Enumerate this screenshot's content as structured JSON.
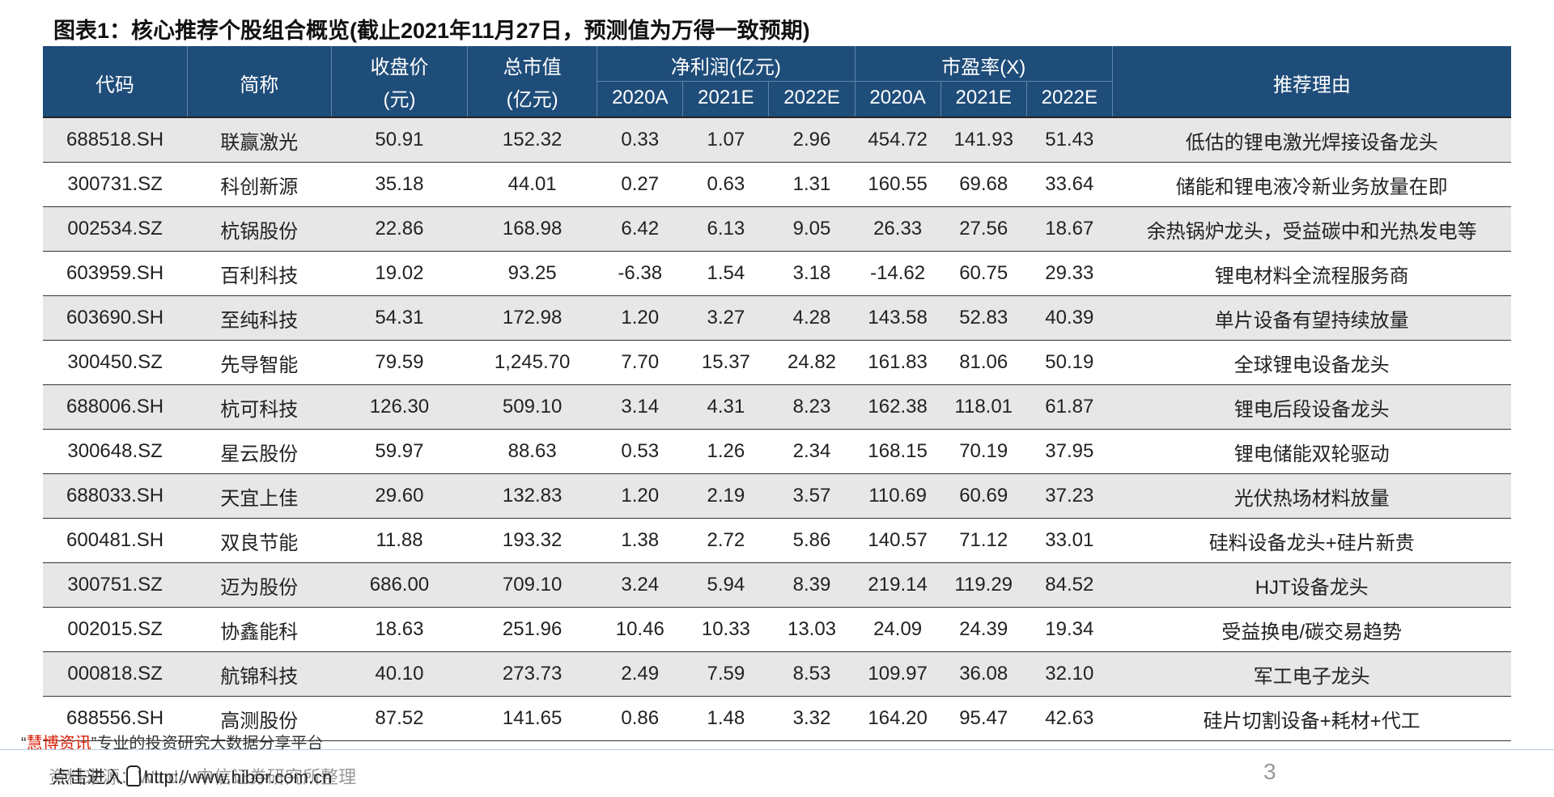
{
  "title": "图表1：核心推荐个股组合概览(截止2021年11月27日，预测值为万得一致预期)",
  "table": {
    "headers": {
      "code": "代码",
      "name": "简称",
      "close": "收盘价",
      "close_unit": "(元)",
      "mktcap": "总市值",
      "mktcap_unit": "(亿元)",
      "profit": "净利润(亿元)",
      "pe": "市盈率(X)",
      "reason": "推荐理由",
      "years": [
        "2020A",
        "2021E",
        "2022E"
      ]
    },
    "rows": [
      {
        "code": "688518.SH",
        "name": "联赢激光",
        "close": "50.91",
        "mktcap": "152.32",
        "p2020": "0.33",
        "p2021": "1.07",
        "p2022": "2.96",
        "pe2020": "454.72",
        "pe2021": "141.93",
        "pe2022": "51.43",
        "reason": "低估的锂电激光焊接设备龙头"
      },
      {
        "code": "300731.SZ",
        "name": "科创新源",
        "close": "35.18",
        "mktcap": "44.01",
        "p2020": "0.27",
        "p2021": "0.63",
        "p2022": "1.31",
        "pe2020": "160.55",
        "pe2021": "69.68",
        "pe2022": "33.64",
        "reason": "储能和锂电液冷新业务放量在即"
      },
      {
        "code": "002534.SZ",
        "name": "杭锅股份",
        "close": "22.86",
        "mktcap": "168.98",
        "p2020": "6.42",
        "p2021": "6.13",
        "p2022": "9.05",
        "pe2020": "26.33",
        "pe2021": "27.56",
        "pe2022": "18.67",
        "reason": "余热锅炉龙头，受益碳中和光热发电等"
      },
      {
        "code": "603959.SH",
        "name": "百利科技",
        "close": "19.02",
        "mktcap": "93.25",
        "p2020": "-6.38",
        "p2021": "1.54",
        "p2022": "3.18",
        "pe2020": "-14.62",
        "pe2021": "60.75",
        "pe2022": "29.33",
        "reason": "锂电材料全流程服务商"
      },
      {
        "code": "603690.SH",
        "name": "至纯科技",
        "close": "54.31",
        "mktcap": "172.98",
        "p2020": "1.20",
        "p2021": "3.27",
        "p2022": "4.28",
        "pe2020": "143.58",
        "pe2021": "52.83",
        "pe2022": "40.39",
        "reason": "单片设备有望持续放量"
      },
      {
        "code": "300450.SZ",
        "name": "先导智能",
        "close": "79.59",
        "mktcap": "1,245.70",
        "p2020": "7.70",
        "p2021": "15.37",
        "p2022": "24.82",
        "pe2020": "161.83",
        "pe2021": "81.06",
        "pe2022": "50.19",
        "reason": "全球锂电设备龙头"
      },
      {
        "code": "688006.SH",
        "name": "杭可科技",
        "close": "126.30",
        "mktcap": "509.10",
        "p2020": "3.14",
        "p2021": "4.31",
        "p2022": "8.23",
        "pe2020": "162.38",
        "pe2021": "118.01",
        "pe2022": "61.87",
        "reason": "锂电后段设备龙头"
      },
      {
        "code": "300648.SZ",
        "name": "星云股份",
        "close": "59.97",
        "mktcap": "88.63",
        "p2020": "0.53",
        "p2021": "1.26",
        "p2022": "2.34",
        "pe2020": "168.15",
        "pe2021": "70.19",
        "pe2022": "37.95",
        "reason": "锂电储能双轮驱动"
      },
      {
        "code": "688033.SH",
        "name": "天宜上佳",
        "close": "29.60",
        "mktcap": "132.83",
        "p2020": "1.20",
        "p2021": "2.19",
        "p2022": "3.57",
        "pe2020": "110.69",
        "pe2021": "60.69",
        "pe2022": "37.23",
        "reason": "光伏热场材料放量"
      },
      {
        "code": "600481.SH",
        "name": "双良节能",
        "close": "11.88",
        "mktcap": "193.32",
        "p2020": "1.38",
        "p2021": "2.72",
        "p2022": "5.86",
        "pe2020": "140.57",
        "pe2021": "71.12",
        "pe2022": "33.01",
        "reason": "硅料设备龙头+硅片新贵"
      },
      {
        "code": "300751.SZ",
        "name": "迈为股份",
        "close": "686.00",
        "mktcap": "709.10",
        "p2020": "3.24",
        "p2021": "5.94",
        "p2022": "8.39",
        "pe2020": "219.14",
        "pe2021": "119.29",
        "pe2022": "84.52",
        "reason": "HJT设备龙头"
      },
      {
        "code": "002015.SZ",
        "name": "协鑫能科",
        "close": "18.63",
        "mktcap": "251.96",
        "p2020": "10.46",
        "p2021": "10.33",
        "p2022": "13.03",
        "pe2020": "24.09",
        "pe2021": "24.39",
        "pe2022": "19.34",
        "reason": "受益换电/碳交易趋势"
      },
      {
        "code": "000818.SZ",
        "name": "航锦科技",
        "close": "40.10",
        "mktcap": "273.73",
        "p2020": "2.49",
        "p2021": "7.59",
        "p2022": "8.53",
        "pe2020": "109.97",
        "pe2021": "36.08",
        "pe2022": "32.10",
        "reason": "军工电子龙头"
      },
      {
        "code": "688556.SH",
        "name": "高测股份",
        "close": "87.52",
        "mktcap": "141.65",
        "p2020": "0.86",
        "p2021": "1.48",
        "p2022": "3.32",
        "pe2020": "164.20",
        "pe2021": "95.47",
        "pe2022": "42.63",
        "reason": "硅片切割设备+耗材+代工"
      }
    ]
  },
  "promo": {
    "quote_open": "“",
    "brand": "慧博资讯",
    "quote_close": "”",
    "text": "专业的投资研究大数据分享平台"
  },
  "footer": {
    "source": "资料来源：Wind，中信证券研究所整理",
    "watermark_prefix": "点击进入",
    "watermark_url": "http://www.hibor.com.cn"
  },
  "page_number": "3"
}
